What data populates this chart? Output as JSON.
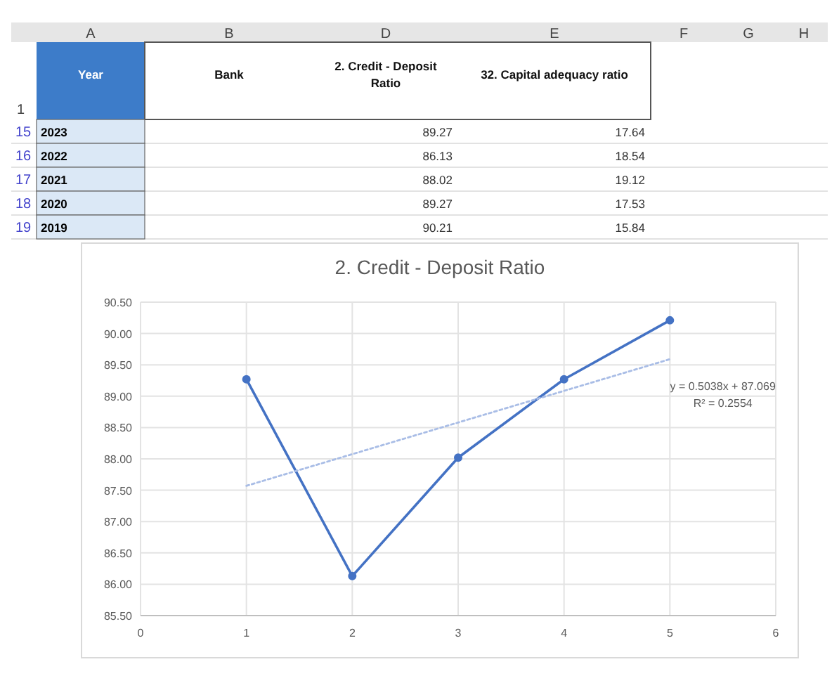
{
  "chart_data": {
    "type": "line",
    "title": "2.  Credit - Deposit Ratio",
    "x": [
      1,
      2,
      3,
      4,
      5
    ],
    "series": [
      {
        "color": "#4472c4",
        "values": [
          89.27,
          86.13,
          88.02,
          89.27,
          90.21
        ],
        "marker": "circle",
        "line_style": "solid"
      },
      {
        "type": "line",
        "x": [
          1,
          5
        ],
        "color": "#a9bde6",
        "values": [
          87.57,
          89.59
        ],
        "marker": "none",
        "line_style": "dotted"
      }
    ],
    "xlim": [
      0,
      6
    ],
    "xticks": [
      0,
      1,
      2,
      3,
      4,
      5,
      6
    ],
    "ylim": [
      85.5,
      90.5
    ],
    "yticks": [
      {
        "value": 85.5,
        "label": "85.50"
      },
      {
        "value": 86,
        "label": "86.00"
      },
      {
        "value": 86.5,
        "label": "86.50"
      },
      {
        "value": 87,
        "label": "87.00"
      },
      {
        "value": 87.5,
        "label": "87.50"
      },
      {
        "value": 88,
        "label": "88.00"
      },
      {
        "value": 88.5,
        "label": "88.50"
      },
      {
        "value": 89,
        "label": "89.00"
      },
      {
        "value": 89.5,
        "label": "89.50"
      },
      {
        "value": 90,
        "label": "90.00"
      },
      {
        "value": 90.5,
        "label": "90.50"
      }
    ],
    "grid": true,
    "annotations": [
      "y = 0.5038x + 87.069",
      "R² = 0.2554",
      "A",
      "B",
      "D",
      "E",
      "F",
      "G",
      "H",
      "1",
      "15",
      "16",
      "17",
      "18",
      "19",
      "Year",
      "Bank",
      "2.  Credit - Deposit Ratio",
      "32.  Capital adequacy ratio",
      "2023",
      "89.27",
      "17.64",
      "2022",
      "86.13",
      "18.54",
      "2021",
      "88.02",
      "19.12",
      "2020",
      "89.27",
      "17.53",
      "2019",
      "90.21",
      "15.84"
    ]
  }
}
